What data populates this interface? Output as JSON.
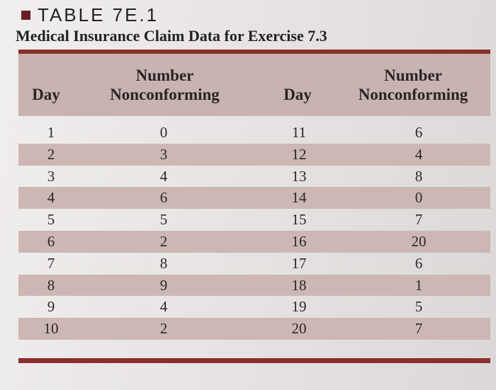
{
  "table_label": "TABLE 7E.1",
  "caption": "Medical Insurance Claim Data for Exercise 7.3",
  "headers": {
    "day_left": "Day",
    "nc_left_line1": "Number",
    "nc_left_line2": "Nonconforming",
    "day_right": "Day",
    "nc_right_line1": "Number",
    "nc_right_line2": "Nonconforming"
  },
  "rows": [
    {
      "day1": "1",
      "nc1": "0",
      "day2": "11",
      "nc2": "6"
    },
    {
      "day1": "2",
      "nc1": "3",
      "day2": "12",
      "nc2": "4"
    },
    {
      "day1": "3",
      "nc1": "4",
      "day2": "13",
      "nc2": "8"
    },
    {
      "day1": "4",
      "nc1": "6",
      "day2": "14",
      "nc2": "0"
    },
    {
      "day1": "5",
      "nc1": "5",
      "day2": "15",
      "nc2": "7"
    },
    {
      "day1": "6",
      "nc1": "2",
      "day2": "16",
      "nc2": "20"
    },
    {
      "day1": "7",
      "nc1": "8",
      "day2": "17",
      "nc2": "6"
    },
    {
      "day1": "8",
      "nc1": "9",
      "day2": "18",
      "nc2": "1"
    },
    {
      "day1": "9",
      "nc1": "4",
      "day2": "19",
      "nc2": "5"
    },
    {
      "day1": "10",
      "nc1": "2",
      "day2": "20",
      "nc2": "7"
    }
  ],
  "colors": {
    "accent_rule": "#8a2f2b",
    "band_shade": "#cdb7b4",
    "bullet": "#6b1e22"
  }
}
